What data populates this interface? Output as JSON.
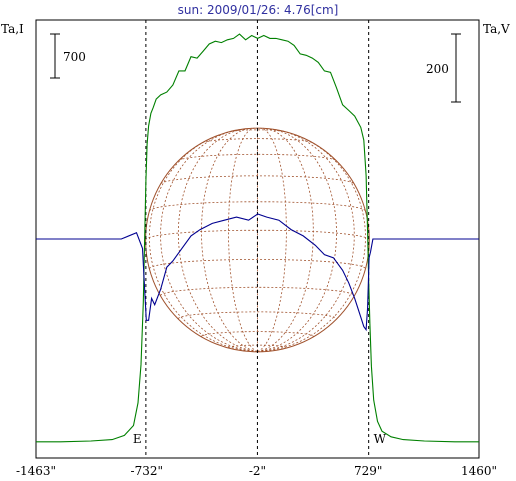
{
  "chart_data": {
    "type": "line",
    "title": "sun: 2009/01/26: 4.76[cm]",
    "left_axis_label": "Ta,I",
    "right_axis_label": "Ta,V",
    "left_scale_label": "700",
    "right_scale_label": "200",
    "x_ticks": [
      {
        "label": "-1463\"",
        "value": -1463
      },
      {
        "label": "-732\"",
        "value": -732
      },
      {
        "label": "-2\"",
        "value": -2
      },
      {
        "label": "729\"",
        "value": 729
      },
      {
        "label": "1460\"",
        "value": 1460
      }
    ],
    "xlim": [
      -1463,
      1460
    ],
    "ylim_I": [
      -100,
      3000
    ],
    "ylim_V": [
      -700,
      700
    ],
    "limb_markers": [
      {
        "label": "E",
        "x": -738
      },
      {
        "label": "W",
        "x": 732
      }
    ],
    "center_line_x": -2,
    "solar_radius_arcsec": 738,
    "grid_meridians_deg": [
      -75,
      -60,
      -45,
      -30,
      -15,
      0,
      15,
      30,
      45,
      60,
      75
    ],
    "grid_parallels_deg": [
      -75,
      -60,
      -45,
      -30,
      -15,
      0,
      15,
      30,
      45,
      60,
      75
    ],
    "series": [
      {
        "name": "I",
        "color": "#008000",
        "x": [
          -1463,
          -1300,
          -1100,
          -960,
          -880,
          -820,
          -790,
          -770,
          -755,
          -745,
          -738,
          -730,
          -720,
          -705,
          -690,
          -670,
          -640,
          -600,
          -560,
          -520,
          -480,
          -440,
          -400,
          -360,
          -320,
          -280,
          -240,
          -200,
          -160,
          -120,
          -80,
          -40,
          0,
          40,
          80,
          120,
          160,
          200,
          240,
          280,
          320,
          360,
          400,
          440,
          480,
          520,
          560,
          600,
          640,
          680,
          700,
          715,
          725,
          732,
          740,
          750,
          765,
          790,
          820,
          880,
          960,
          1100,
          1300,
          1460
        ],
        "values": [
          15,
          15,
          20,
          30,
          60,
          130,
          290,
          560,
          1000,
          1500,
          1860,
          2120,
          2250,
          2340,
          2380,
          2440,
          2470,
          2490,
          2540,
          2640,
          2640,
          2740,
          2730,
          2780,
          2830,
          2850,
          2840,
          2860,
          2870,
          2900,
          2860,
          2890,
          2870,
          2890,
          2870,
          2870,
          2860,
          2850,
          2820,
          2760,
          2750,
          2730,
          2700,
          2640,
          2630,
          2520,
          2400,
          2360,
          2320,
          2240,
          2150,
          1900,
          1500,
          1150,
          850,
          550,
          310,
          160,
          90,
          50,
          30,
          20,
          15,
          15
        ]
      },
      {
        "name": "V",
        "color": "#000090",
        "x": [
          -1463,
          -1200,
          -900,
          -800,
          -760,
          -745,
          -735,
          -720,
          -700,
          -680,
          -640,
          -600,
          -560,
          -500,
          -440,
          -380,
          -300,
          -220,
          -140,
          -60,
          0,
          60,
          140,
          220,
          300,
          380,
          440,
          500,
          560,
          600,
          640,
          680,
          700,
          715,
          725,
          735,
          745,
          760,
          800,
          900,
          1200,
          1460
        ],
        "values": [
          0,
          0,
          0,
          20,
          -30,
          -170,
          -260,
          -260,
          -190,
          -210,
          -160,
          -90,
          -70,
          -30,
          10,
          30,
          50,
          60,
          70,
          60,
          80,
          70,
          60,
          30,
          10,
          -20,
          -50,
          -60,
          -100,
          -140,
          -190,
          -250,
          -280,
          -290,
          -220,
          -60,
          -40,
          0,
          0,
          0,
          0,
          0
        ]
      }
    ]
  }
}
